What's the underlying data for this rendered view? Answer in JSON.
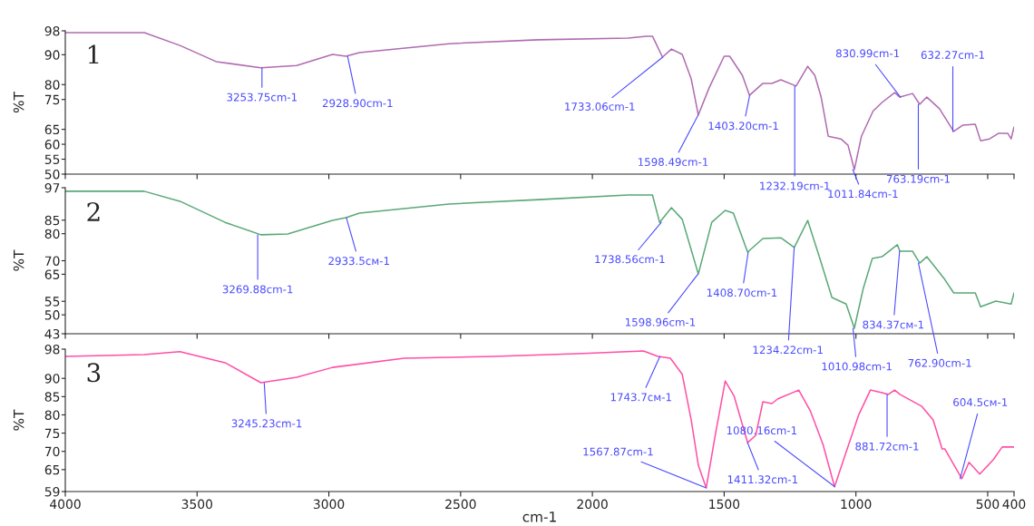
{
  "chart_data": [
    {
      "type": "line",
      "ylabel": "%T",
      "xlim": [
        4000,
        400
      ],
      "ylim": [
        50,
        98
      ],
      "yticks": [
        50,
        55,
        60,
        65,
        75,
        80,
        90,
        98
      ],
      "xticks": [
        4000,
        3500,
        3000,
        2500,
        2000,
        1500,
        1000,
        500,
        400
      ],
      "tick_labels": "y",
      "grid": false,
      "legend": false,
      "x": [
        4000,
        3700,
        3565,
        3428,
        3258,
        3122,
        2986,
        2935,
        2884,
        2544,
        2204,
        1864,
        1796,
        1772,
        1734,
        1700,
        1659,
        1625,
        1598,
        1557,
        1500,
        1479,
        1431,
        1404,
        1353,
        1319,
        1285,
        1227,
        1183,
        1156,
        1132,
        1105,
        1057,
        1030,
        1006,
        979,
        935,
        901,
        853,
        833,
        785,
        758,
        731,
        683,
        629,
        595,
        547,
        527,
        493,
        458,
        424,
        411,
        400
      ],
      "series": [
        {
          "color": "#b06cb0",
          "values": [
            97.4,
            97.4,
            93.1,
            87.7,
            85.6,
            86.4,
            90.1,
            89.5,
            90.7,
            93.7,
            95.0,
            95.6,
            96.2,
            96.2,
            89.2,
            91.9,
            90.1,
            81.9,
            69.8,
            78.9,
            89.5,
            89.5,
            83.1,
            76.4,
            80.4,
            80.4,
            81.6,
            79.5,
            86.1,
            83.1,
            75.8,
            62.7,
            61.8,
            59.7,
            51.5,
            62.7,
            71.1,
            74.0,
            77.3,
            75.8,
            77.0,
            73.4,
            75.8,
            71.9,
            64.3,
            66.4,
            66.7,
            61.2,
            61.8,
            63.7,
            63.7,
            61.8,
            65.8
          ]
        }
      ],
      "annotations": [
        "1",
        {
          "text": "3253.75cm-1",
          "x": 3253.75,
          "y": 85.6
        },
        {
          "text": "2928.90cm-1",
          "x": 2928.9,
          "y": 89.5
        },
        {
          "text": "1733.06cm-1",
          "x": 1733.06,
          "y": 89.2
        },
        {
          "text": "1598.49cm-1",
          "x": 1598.49,
          "y": 69.8
        },
        {
          "text": "1403.20cm-1",
          "x": 1403.2,
          "y": 76.4
        },
        {
          "text": "1232.19cm-1",
          "x": 1232.19,
          "y": 79.5
        },
        {
          "text": "1011.84cm-1",
          "x": 1011.84,
          "y": 51.5
        },
        {
          "text": "830.99cm-1",
          "x": 830.99,
          "y": 75.8
        },
        {
          "text": "763.19cm-1",
          "x": 763.19,
          "y": 73.4
        },
        {
          "text": "632.27cm-1",
          "x": 632.27,
          "y": 64.3
        }
      ]
    },
    {
      "type": "line",
      "ylabel": "%T",
      "xlim": [
        4000,
        400
      ],
      "ylim": [
        43,
        97
      ],
      "yticks": [
        43,
        50,
        55,
        65,
        70,
        80,
        85,
        97
      ],
      "xticks": [
        4000,
        3500,
        3000,
        2500,
        2000,
        1500,
        1000,
        500,
        400
      ],
      "tick_labels": "y",
      "grid": false,
      "legend": false,
      "x": [
        4000,
        3701,
        3565,
        3394,
        3258,
        3156,
        2986,
        2935,
        2884,
        2544,
        2204,
        1864,
        1772,
        1745,
        1700,
        1659,
        1598,
        1547,
        1496,
        1465,
        1411,
        1353,
        1285,
        1234,
        1183,
        1139,
        1091,
        1037,
        1006,
        972,
        938,
        901,
        843,
        833,
        785,
        758,
        731,
        663,
        629,
        547,
        527,
        469,
        411,
        400
      ],
      "series": [
        {
          "color": "#5aa878",
          "values": [
            95.7,
            95.7,
            92.0,
            84.2,
            79.6,
            79.9,
            84.9,
            85.9,
            87.6,
            91.0,
            92.6,
            94.3,
            94.3,
            84.2,
            89.6,
            85.3,
            65.1,
            84.2,
            88.6,
            87.6,
            73.2,
            78.2,
            78.5,
            74.9,
            84.9,
            71.5,
            56.4,
            54.0,
            45.0,
            59.8,
            70.8,
            71.5,
            75.9,
            73.5,
            73.5,
            69.1,
            71.5,
            63.1,
            58.1,
            58.1,
            53.0,
            55.1,
            54.0,
            58.1
          ]
        }
      ],
      "annotations": [
        "2",
        {
          "text": "3269.88cm-1",
          "x": 3269.88,
          "y": 79.6
        },
        {
          "text": "2933.5cм-1",
          "x": 2933.5,
          "y": 85.9
        },
        {
          "text": "1738.56cm-1",
          "x": 1738.56,
          "y": 84.2
        },
        {
          "text": "1598.96cm-1",
          "x": 1598.96,
          "y": 65.1
        },
        {
          "text": "1408.70cm-1",
          "x": 1408.7,
          "y": 73.2
        },
        {
          "text": "1234.22cm-1",
          "x": 1234.22,
          "y": 74.9
        },
        {
          "text": "1010.98cm-1",
          "x": 1010.98,
          "y": 45.0
        },
        {
          "text": "834.37cм-1",
          "x": 834.37,
          "y": 73.5
        },
        {
          "text": "762.90cm-1",
          "x": 762.9,
          "y": 69.1
        }
      ]
    },
    {
      "type": "line",
      "ylabel": "%T",
      "xlabel": "cm-1",
      "xlim": [
        4000,
        400
      ],
      "ylim": [
        59,
        98
      ],
      "yticks": [
        59,
        65,
        70,
        75,
        80,
        85,
        90,
        98
      ],
      "xticks": [
        4000,
        3500,
        3000,
        2500,
        2000,
        1500,
        1000,
        500,
        400
      ],
      "grid": false,
      "legend": false,
      "x": [
        4000,
        3701,
        3565,
        3394,
        3258,
        3122,
        2986,
        2714,
        2374,
        2034,
        1806,
        1751,
        1704,
        1659,
        1625,
        1598,
        1568,
        1534,
        1496,
        1462,
        1411,
        1380,
        1353,
        1319,
        1296,
        1217,
        1173,
        1125,
        1081,
        1047,
        989,
        945,
        901,
        877,
        853,
        833,
        751,
        707,
        673,
        663,
        598,
        571,
        530,
        479,
        445,
        400
      ],
      "series": [
        {
          "color": "#ff4fa6",
          "values": [
            96.0,
            96.5,
            97.3,
            94.3,
            88.8,
            90.3,
            93.0,
            95.5,
            96.0,
            96.8,
            97.5,
            96.0,
            95.5,
            91.1,
            78.6,
            66.2,
            60.0,
            74.4,
            89.3,
            85.1,
            72.4,
            74.4,
            83.6,
            83.1,
            84.4,
            86.8,
            81.1,
            71.9,
            60.3,
            67.7,
            80.1,
            86.8,
            86.1,
            85.6,
            86.8,
            85.6,
            82.4,
            78.6,
            70.7,
            70.7,
            62.5,
            67.0,
            63.8,
            67.7,
            71.2,
            71.2
          ]
        }
      ],
      "annotations": [
        "3",
        {
          "text": "3245.23cm-1",
          "x": 3245.23,
          "y": 88.8
        },
        {
          "text": "1743.7cм-1",
          "x": 1743.7,
          "y": 96.0
        },
        {
          "text": "1567.87cm-1",
          "x": 1567.87,
          "y": 60.0
        },
        {
          "text": "1411.32cm-1",
          "x": 1411.32,
          "y": 72.4
        },
        {
          "text": "1080.16cm-1",
          "x": 1080.16,
          "y": 60.3
        },
        {
          "text": "881.72cm-1",
          "x": 881.72,
          "y": 85.6
        },
        {
          "text": "604.5cм-1",
          "x": 604.5,
          "y": 62.5
        }
      ]
    }
  ]
}
